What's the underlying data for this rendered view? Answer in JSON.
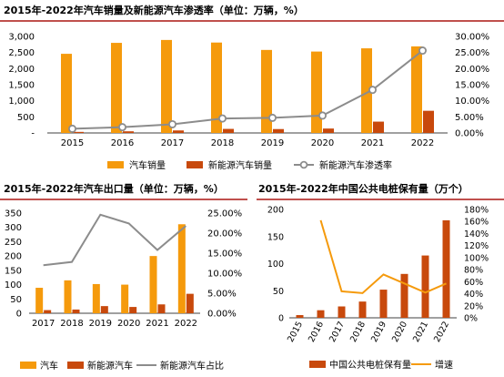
{
  "colors": {
    "orange_bar": "#f59a0c",
    "dark_bar": "#c8490c",
    "grey_line": "#8c8c8c",
    "orange_line": "#f59a0c",
    "rule": "#c0504d"
  },
  "chart_data": [
    {
      "type": "bar",
      "title": "2015年-2022年汽车销量及新能源汽车渗透率（单位：万辆，%）",
      "categories": [
        "2015",
        "2016",
        "2017",
        "2018",
        "2019",
        "2020",
        "2021",
        "2022"
      ],
      "y_left_ticks": [
        "3,000",
        "2,500",
        "2,000",
        "1,500",
        "1,000",
        "500",
        "-"
      ],
      "y_right_ticks": [
        "30.00%",
        "25.00%",
        "20.00%",
        "15.00%",
        "10.00%",
        "5.00%",
        "0.00%"
      ],
      "ylim_left": [
        0,
        3000
      ],
      "ylim_right": [
        0,
        30
      ],
      "series": [
        {
          "name": "汽车销量",
          "kind": "bar",
          "axis": "left",
          "values": [
            2460,
            2800,
            2890,
            2810,
            2580,
            2530,
            2630,
            2690
          ]
        },
        {
          "name": "新能源汽车销量",
          "kind": "bar",
          "axis": "left",
          "values": [
            33,
            51,
            78,
            126,
            121,
            137,
            352,
            689
          ]
        },
        {
          "name": "新能源汽车渗透率",
          "kind": "line",
          "axis": "right",
          "values": [
            1.3,
            1.8,
            2.7,
            4.5,
            4.7,
            5.4,
            13.4,
            25.6
          ]
        }
      ]
    },
    {
      "type": "bar",
      "title": "2015年-2022年汽车出口量（单位：万辆，%）",
      "categories": [
        "2017",
        "2018",
        "2019",
        "2020",
        "2021",
        "2022"
      ],
      "y_left_ticks": [
        "350",
        "300",
        "250",
        "200",
        "150",
        "100",
        "50",
        "0"
      ],
      "y_right_ticks": [
        "25.00%",
        "20.00%",
        "15.00%",
        "10.00%",
        "5.00%",
        "0.00%"
      ],
      "ylim_left": [
        0,
        350
      ],
      "ylim_right": [
        0,
        25
      ],
      "series": [
        {
          "name": "汽车",
          "kind": "bar",
          "axis": "left",
          "values": [
            89,
            115,
            102,
            100,
            200,
            311
          ]
        },
        {
          "name": "新能源汽车",
          "kind": "bar",
          "axis": "left",
          "values": [
            11,
            13,
            25,
            22,
            31,
            68
          ]
        },
        {
          "name": "新能源汽车占比",
          "kind": "line",
          "axis": "right",
          "values": [
            12.0,
            12.8,
            24.6,
            22.4,
            15.8,
            21.8
          ]
        }
      ]
    },
    {
      "type": "bar",
      "title": "2015年-2022年中国公共电桩保有量（万个）",
      "categories": [
        "2015",
        "2016",
        "2017",
        "2018",
        "2019",
        "2020",
        "2021",
        "2022"
      ],
      "y_left_ticks": [
        "200",
        "150",
        "100",
        "50",
        "0"
      ],
      "y_right_ticks": [
        "180%",
        "160%",
        "140%",
        "120%",
        "100%",
        "80%",
        "60%",
        "40%",
        "20%",
        "0%"
      ],
      "ylim_left": [
        0,
        200
      ],
      "ylim_right": [
        0,
        180
      ],
      "series": [
        {
          "name": "中国公共电桩保有量",
          "kind": "bar",
          "axis": "left",
          "values": [
            5,
            14,
            21,
            30,
            52,
            81,
            115,
            180
          ]
        },
        {
          "name": "增速",
          "kind": "line",
          "axis": "right",
          "values": [
            null,
            162,
            44,
            41,
            72,
            57,
            42,
            57
          ]
        }
      ]
    }
  ]
}
